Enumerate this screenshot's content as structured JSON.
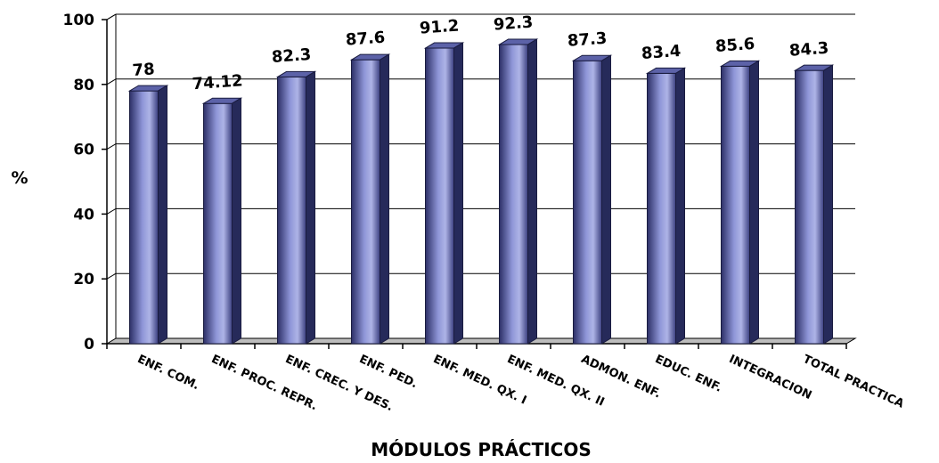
{
  "colors": {
    "bar_front_light": "#aeb4e6",
    "bar_front_dark": "#2c2f66",
    "bar_top": "#5c62a8",
    "bar_side": "#262a5a",
    "gridline": "#000000",
    "floor": "#bdbdbd"
  },
  "chart_data": {
    "type": "bar",
    "title": "",
    "xlabel": "MÓDULOS PRÁCTICOS",
    "ylabel": "%",
    "ylim": [
      0,
      100
    ],
    "yticks": [
      0,
      20,
      40,
      60,
      80,
      100
    ],
    "grid": true,
    "three_d": true,
    "categories": [
      "ENF. COM.",
      "ENF. PROC. REPR.",
      "ENF. CREC. Y DES.",
      "ENF. PED.",
      "ENF. MED. QX. I",
      "ENF. MED. QX. II",
      "ADMON. ENF.",
      "EDUC. ENF.",
      "INTEGRACION",
      "TOTAL PRACTICA"
    ],
    "values": [
      78,
      74.12,
      82.3,
      87.6,
      91.2,
      92.3,
      87.3,
      83.4,
      85.6,
      84.3
    ],
    "data_labels": [
      "78",
      "74.12",
      "82.3",
      "87.6",
      "91.2",
      "92.3",
      "87.3",
      "83.4",
      "85.6",
      "84.3"
    ]
  }
}
